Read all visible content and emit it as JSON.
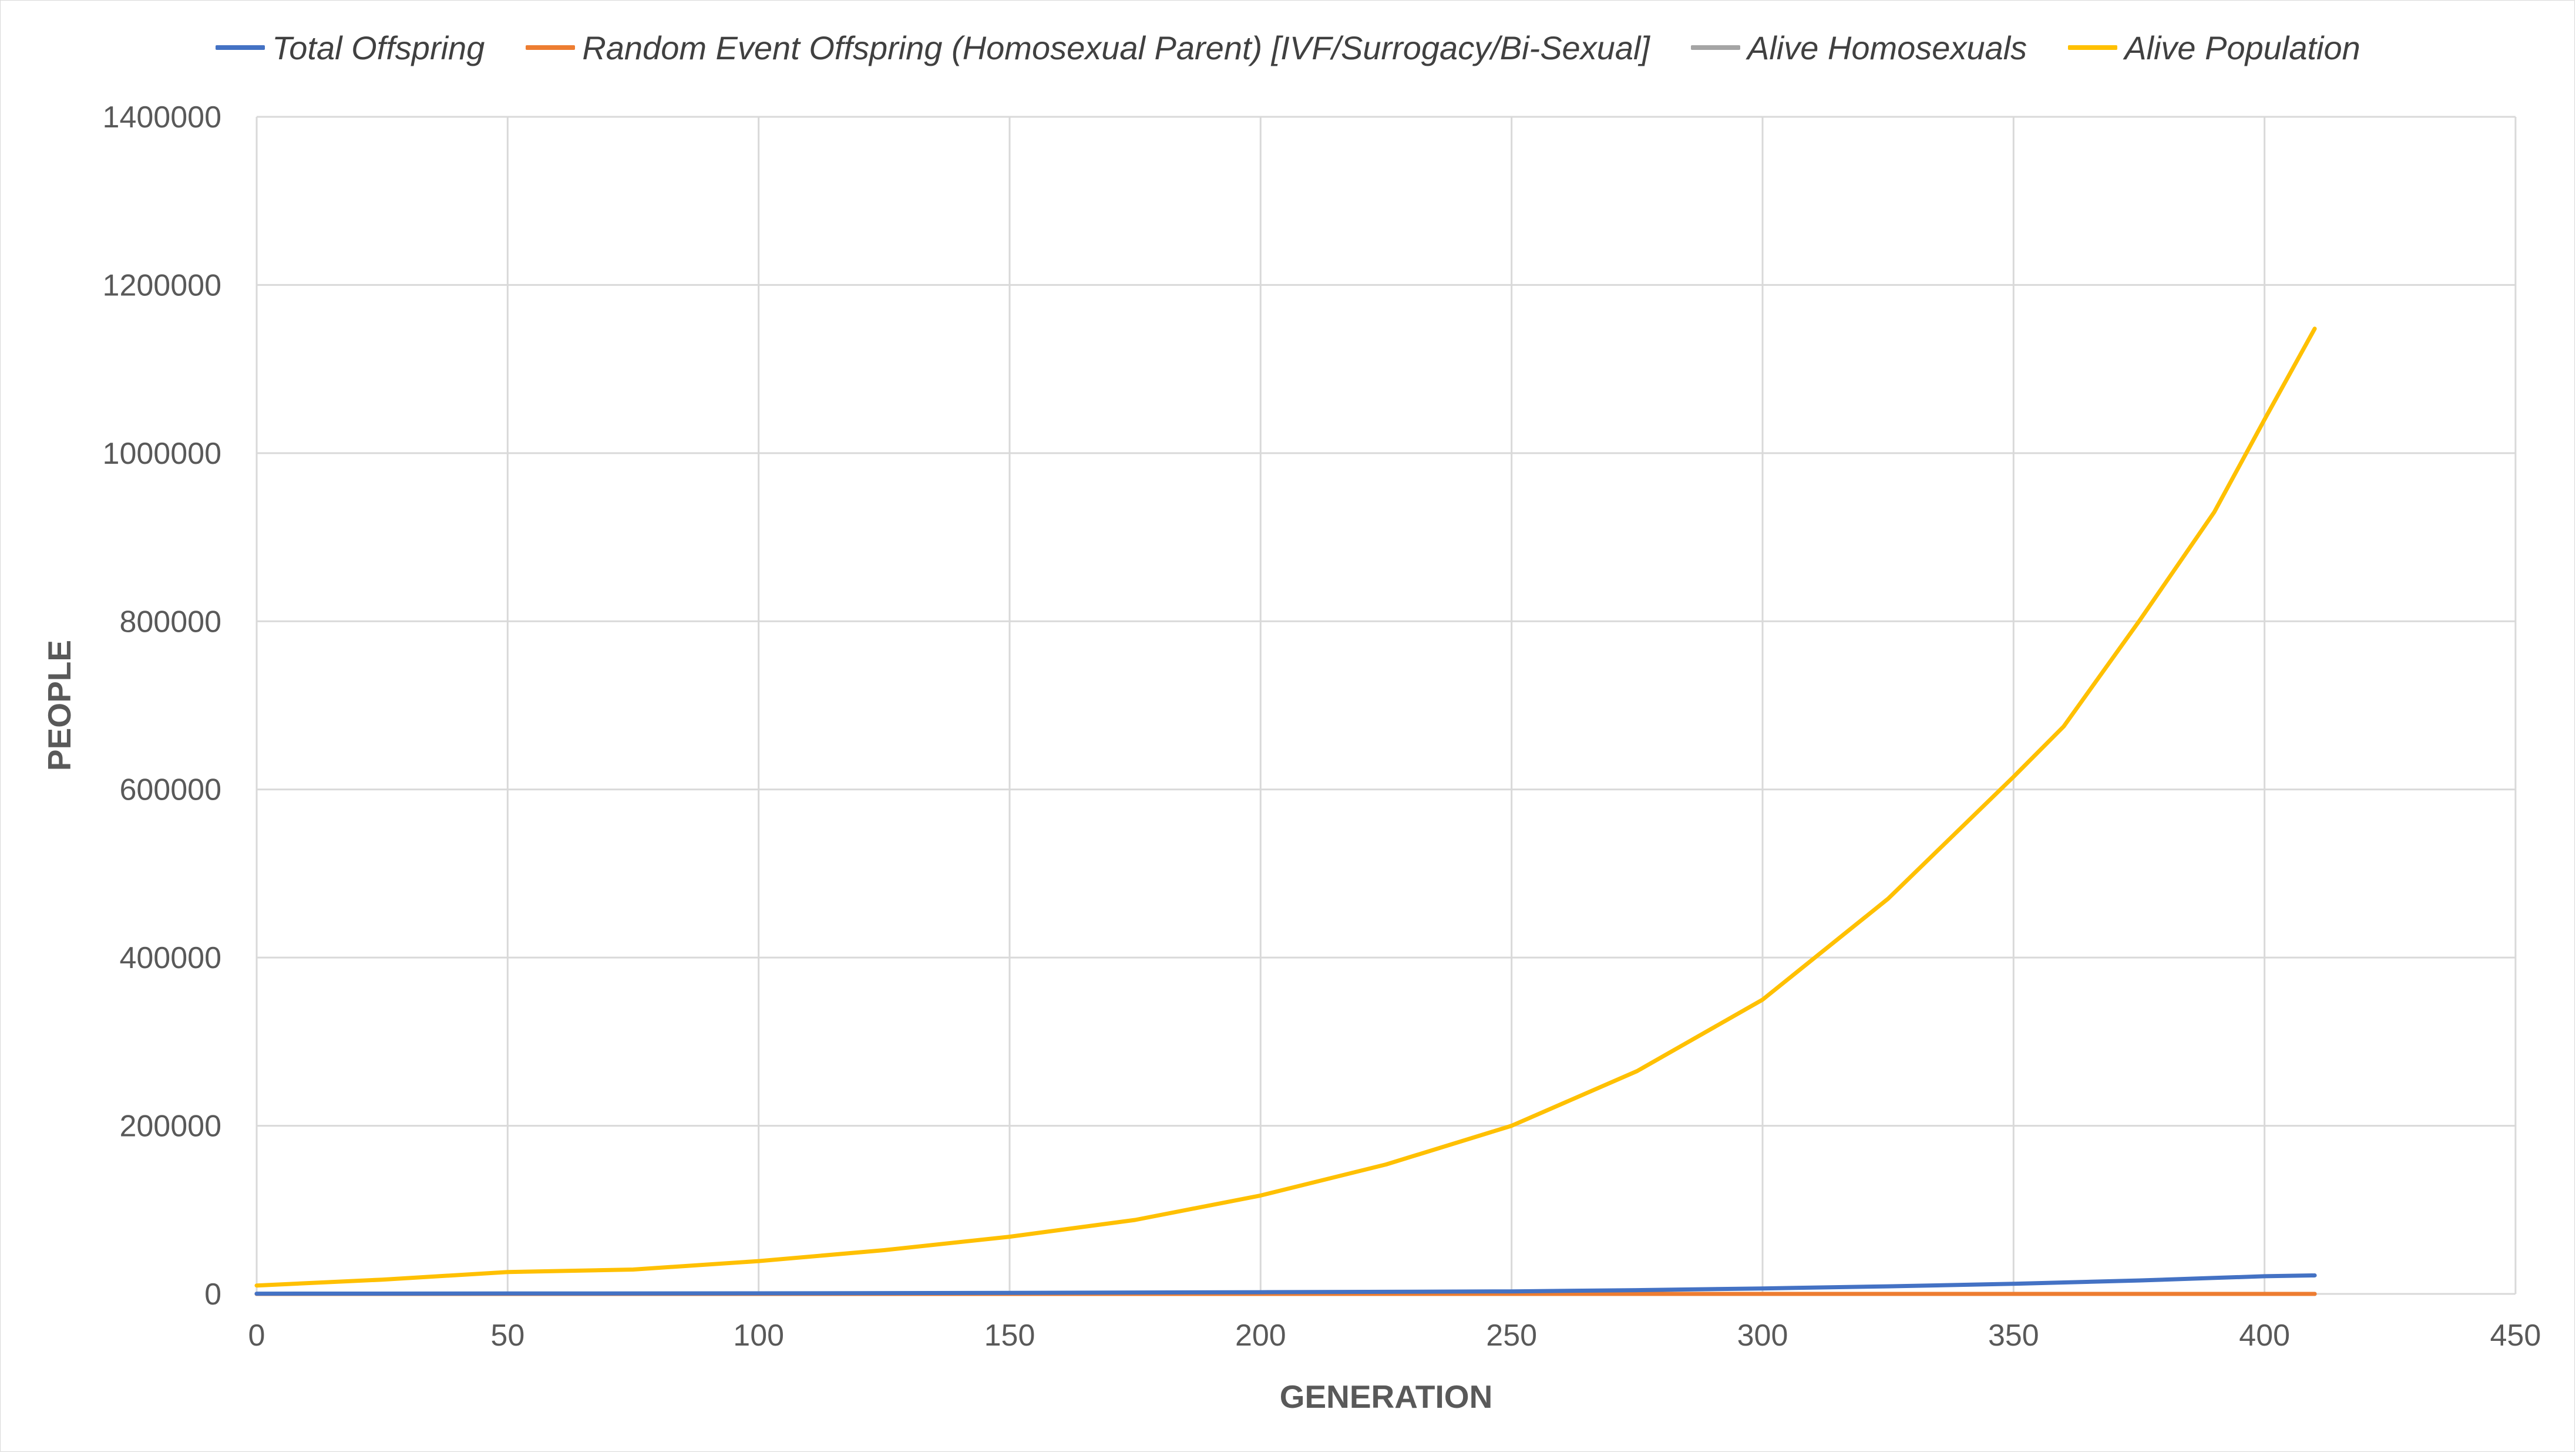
{
  "chart_data": {
    "type": "line",
    "title": "",
    "xlabel": "GENERATION",
    "ylabel": "PEOPLE",
    "xlim": [
      0,
      450
    ],
    "ylim": [
      0,
      1400000
    ],
    "x_ticks": [
      0,
      50,
      100,
      150,
      200,
      250,
      300,
      350,
      400,
      450
    ],
    "y_ticks": [
      0,
      200000,
      400000,
      600000,
      800000,
      1000000,
      1200000,
      1400000
    ],
    "grid": true,
    "legend_position": "top",
    "series": [
      {
        "name": "Total Offspring",
        "color": "#4472C4",
        "x": [
          0,
          50,
          100,
          150,
          200,
          250,
          275,
          300,
          325,
          350,
          375,
          390,
          400,
          410
        ],
        "values": [
          300,
          500,
          700,
          1200,
          2000,
          3000,
          4500,
          6500,
          9000,
          12000,
          16000,
          19000,
          21000,
          22000
        ]
      },
      {
        "name": "Random Event Offspring (Homosexual Parent) [IVF/Surrogacy/Bi-Sexual]",
        "color": "#ED7D31",
        "x": [
          0,
          100,
          200,
          300,
          410
        ],
        "values": [
          0,
          0,
          0,
          0,
          0
        ]
      },
      {
        "name": "Alive Homosexuals",
        "color": "#A5A5A5",
        "x": [
          0,
          100,
          200,
          300,
          410
        ],
        "values": [
          0,
          0,
          0,
          0,
          0
        ]
      },
      {
        "name": "Alive Population",
        "color": "#FFC000",
        "x": [
          0,
          25,
          50,
          75,
          100,
          125,
          150,
          175,
          200,
          225,
          250,
          275,
          300,
          325,
          350,
          360,
          375,
          390,
          400,
          410
        ],
        "values": [
          10000,
          17000,
          26000,
          29000,
          39000,
          52000,
          68000,
          88000,
          117000,
          154000,
          200000,
          265000,
          350000,
          470000,
          615000,
          675000,
          800000,
          930000,
          1040000,
          1148000
        ]
      }
    ]
  }
}
